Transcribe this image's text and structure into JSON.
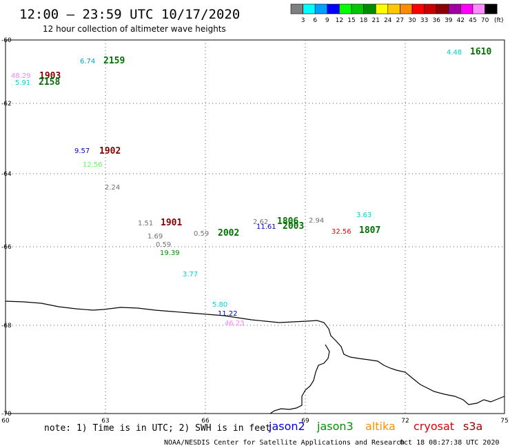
{
  "header": {
    "title": "12:00 – 23:59 UTC 10/17/2020",
    "subtitle": "12 hour collection of altimeter wave heights"
  },
  "legend": {
    "unit": "(ft)",
    "swatches": [
      {
        "label": "3",
        "color": "#7f7f7f"
      },
      {
        "label": "6",
        "color": "#00ffff"
      },
      {
        "label": "9",
        "color": "#00a0ff"
      },
      {
        "label": "12",
        "color": "#0000ff"
      },
      {
        "label": "15",
        "color": "#00ff00"
      },
      {
        "label": "18",
        "color": "#00c800"
      },
      {
        "label": "21",
        "color": "#008c00"
      },
      {
        "label": "24",
        "color": "#ffff00"
      },
      {
        "label": "27",
        "color": "#ffc800"
      },
      {
        "label": "30",
        "color": "#ff8c00"
      },
      {
        "label": "33",
        "color": "#ff0000"
      },
      {
        "label": "36",
        "color": "#c80000"
      },
      {
        "label": "39",
        "color": "#8c0000"
      },
      {
        "label": "42",
        "color": "#a000a0"
      },
      {
        "label": "45",
        "color": "#ff00ff"
      },
      {
        "label": "70",
        "color": "#ff8cff"
      },
      {
        "label": "",
        "color": "#000000"
      }
    ]
  },
  "axes": {
    "lat_labels": [
      "-60",
      "-62",
      "-64",
      "-66",
      "-68",
      "-70"
    ],
    "lon_labels": [
      "60",
      "63",
      "66",
      "69",
      "72",
      "75"
    ]
  },
  "observations": [
    {
      "text": "4.48",
      "color": "#00d0d0"
    },
    {
      "text": "1610",
      "color": "#007000"
    },
    {
      "text": "6.74",
      "color": "#00a0c0"
    },
    {
      "text": "2159",
      "color": "#007000"
    },
    {
      "text": "48.29",
      "color": "#ff80ff"
    },
    {
      "text": "1903",
      "color": "#800000"
    },
    {
      "text": "5.91",
      "color": "#00d0d0"
    },
    {
      "text": "2158",
      "color": "#007000"
    },
    {
      "text": "9.57",
      "color": "#0000c0"
    },
    {
      "text": "1902",
      "color": "#800000"
    },
    {
      "text": "12.56",
      "color": "#60ff60"
    },
    {
      "text": "2.24",
      "color": "#707070"
    },
    {
      "text": "1.51",
      "color": "#707070"
    },
    {
      "text": "1901",
      "color": "#800000"
    },
    {
      "text": "1.69",
      "color": "#707070"
    },
    {
      "text": "0.59",
      "color": "#707070"
    },
    {
      "text": "0.59",
      "color": "#707070"
    },
    {
      "text": "2002",
      "color": "#007000"
    },
    {
      "text": "19.39",
      "color": "#008c00"
    },
    {
      "text": "3.77",
      "color": "#00d0d0"
    },
    {
      "text": "2.62",
      "color": "#707070"
    },
    {
      "text": "1806",
      "color": "#007000"
    },
    {
      "text": "11.61",
      "color": "#0000c0"
    },
    {
      "text": "2003",
      "color": "#007000"
    },
    {
      "text": "2.94",
      "color": "#707070"
    },
    {
      "text": "3.63",
      "color": "#00d0d0"
    },
    {
      "text": "32.56",
      "color": "#e00000"
    },
    {
      "text": "1807",
      "color": "#007000"
    },
    {
      "text": "5.80",
      "color": "#00d0d0"
    },
    {
      "text": "11.22",
      "color": "#0000c0"
    },
    {
      "text": "46.23",
      "color": "#ff80ff"
    }
  ],
  "footer": {
    "note": "note: 1) Time is in UTC; 2) SWH is in feet",
    "satellites": [
      {
        "name": "jason2",
        "color": "#0000e0"
      },
      {
        "name": "jason3",
        "color": "#009000"
      },
      {
        "name": "altika",
        "color": "#ff9000"
      },
      {
        "name": "cryosat",
        "color": "#e00000"
      },
      {
        "name": "s3a",
        "color": "#a00000"
      }
    ],
    "credit": "NOAA/NESDIS Center for Satellite Applications and Research",
    "timestamp": "Oct 18 08:27:38 UTC 2020"
  }
}
